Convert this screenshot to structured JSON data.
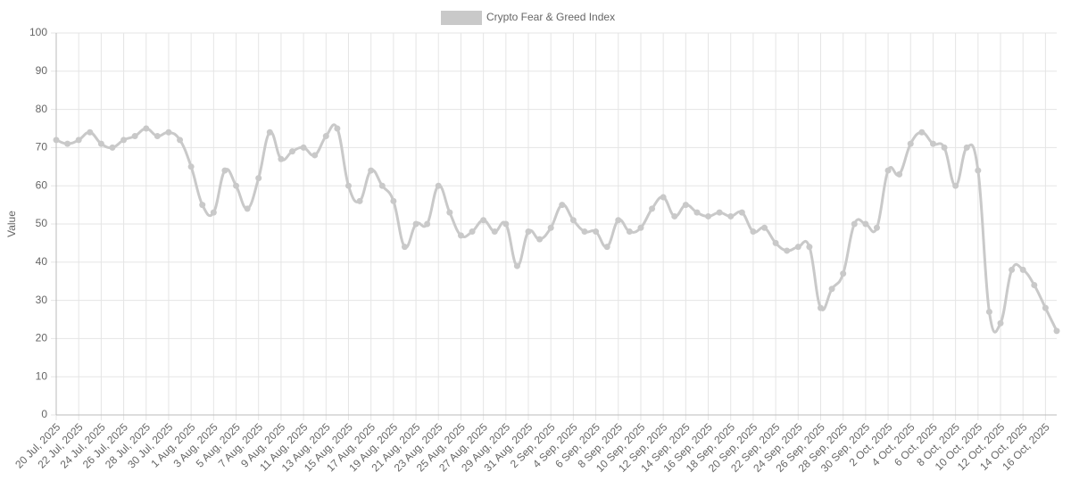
{
  "chart_data": {
    "type": "line",
    "legend_label": "Crypto Fear & Greed Index",
    "y_label": "Value",
    "categories": [
      "20 Jul, 2025",
      null,
      "22 Jul, 2025",
      null,
      "24 Jul, 2025",
      null,
      "26 Jul, 2025",
      null,
      "28 Jul, 2025",
      null,
      "30 Jul, 2025",
      null,
      "1 Aug, 2025",
      null,
      "3 Aug, 2025",
      null,
      "5 Aug, 2025",
      null,
      "7 Aug, 2025",
      null,
      "9 Aug, 2025",
      null,
      "11 Aug, 2025",
      null,
      "13 Aug, 2025",
      null,
      "15 Aug, 2025",
      null,
      "17 Aug, 2025",
      null,
      "19 Aug, 2025",
      null,
      "21 Aug, 2025",
      null,
      "23 Aug, 2025",
      null,
      "25 Aug, 2025",
      null,
      "27 Aug, 2025",
      null,
      "29 Aug, 2025",
      null,
      "31 Aug, 2025",
      null,
      "2 Sep, 2025",
      null,
      "4 Sep, 2025",
      null,
      "6 Sep, 2025",
      null,
      "8 Sep, 2025",
      null,
      "10 Sep, 2025",
      null,
      "12 Sep, 2025",
      null,
      "14 Sep, 2025",
      null,
      "16 Sep, 2025",
      null,
      "18 Sep, 2025",
      null,
      "20 Sep, 2025",
      null,
      "22 Sep, 2025",
      null,
      "24 Sep, 2025",
      null,
      "26 Sep, 2025",
      null,
      "28 Sep, 2025",
      null,
      "30 Sep, 2025",
      null,
      "2 Oct, 2025",
      null,
      "4 Oct, 2025",
      null,
      "6 Oct, 2025",
      null,
      "8 Oct, 2025",
      null,
      "10 Oct, 2025",
      null,
      "12 Oct, 2025",
      null,
      "14 Oct, 2025",
      null,
      "16 Oct, 2025",
      null
    ],
    "series": [
      {
        "name": "Crypto Fear & Greed Index",
        "color": "#c9c9c9",
        "values": [
          72,
          71,
          72,
          74,
          71,
          70,
          72,
          73,
          75,
          73,
          74,
          72,
          65,
          55,
          53,
          64,
          60,
          54,
          62,
          74,
          67,
          69,
          70,
          68,
          73,
          75,
          60,
          56,
          64,
          60,
          56,
          44,
          50,
          50,
          60,
          53,
          47,
          48,
          51,
          48,
          50,
          39,
          48,
          46,
          49,
          55,
          51,
          48,
          48,
          44,
          51,
          48,
          49,
          54,
          57,
          52,
          55,
          53,
          52,
          53,
          52,
          53,
          48,
          49,
          45,
          43,
          44,
          44,
          28,
          33,
          37,
          50,
          50,
          49,
          64,
          63,
          71,
          74,
          71,
          70,
          60,
          70,
          64,
          27,
          24,
          38,
          38,
          34,
          28,
          22
        ]
      }
    ],
    "ylim": [
      0,
      100
    ],
    "yticks": [
      0,
      10,
      20,
      30,
      40,
      50,
      60,
      70,
      80,
      90,
      100
    ],
    "grid": true
  }
}
